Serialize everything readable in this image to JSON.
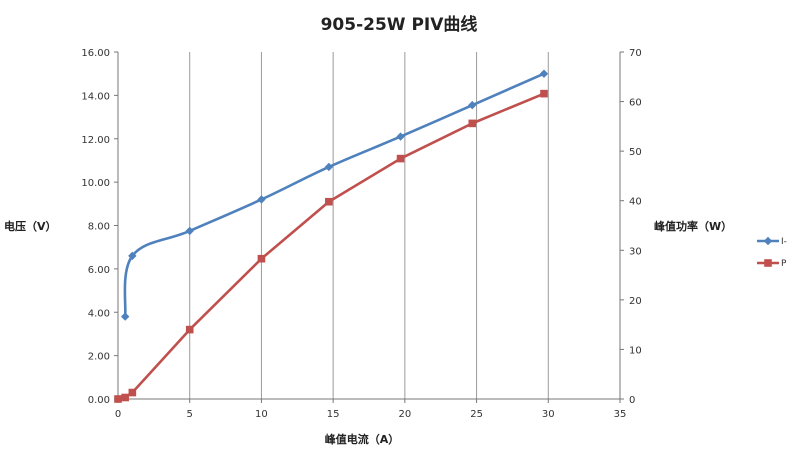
{
  "chart_data": {
    "type": "line",
    "title": "905-25W PIV曲线",
    "xlabel": "峰值电流（A）",
    "ylabel": "电压（V）",
    "y2label": "峰值功率（W）",
    "xlim": [
      0,
      35
    ],
    "ylim": [
      0,
      16
    ],
    "y2lim": [
      0,
      70
    ],
    "xticks": [
      "0",
      "5",
      "10",
      "15",
      "20",
      "25",
      "30",
      "35"
    ],
    "yticks": [
      "0.00",
      "2.00",
      "4.00",
      "6.00",
      "8.00",
      "10.00",
      "12.00",
      "14.00",
      "16.00"
    ],
    "y2ticks": [
      "0",
      "10",
      "20",
      "30",
      "40",
      "50",
      "60",
      "70"
    ],
    "grid": "vertical",
    "legend": "right",
    "series": [
      {
        "name": "I-",
        "axis": "left",
        "color": "#4F81BD",
        "marker": "diamond",
        "smooth": true,
        "x": [
          0.5,
          1.0,
          5.0,
          10.0,
          14.7,
          19.7,
          24.7,
          29.7
        ],
        "y": [
          3.8,
          6.6,
          7.75,
          9.2,
          10.7,
          12.1,
          13.55,
          15.0
        ]
      },
      {
        "name": "P",
        "axis": "right",
        "color": "#C0504D",
        "marker": "square",
        "smooth": false,
        "x": [
          0.0,
          0.5,
          1.0,
          5.0,
          10.0,
          14.7,
          19.7,
          24.7,
          29.7
        ],
        "y": [
          0.0,
          0.3,
          1.3,
          14.0,
          28.3,
          39.8,
          48.5,
          55.6,
          61.6
        ]
      }
    ]
  }
}
